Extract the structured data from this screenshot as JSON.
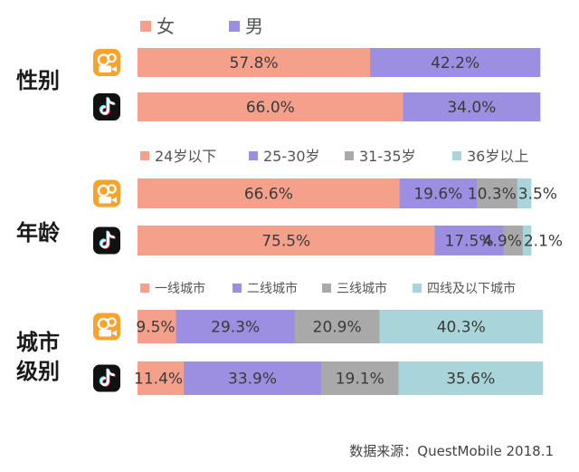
{
  "chart_data": [
    {
      "type": "bar",
      "orientation": "horizontal",
      "stacked": true,
      "title": "性别",
      "categories": [
        "快手",
        "抖音"
      ],
      "series": [
        {
          "name": "女",
          "values": [
            57.8,
            66.0
          ]
        },
        {
          "name": "男",
          "values": [
            42.2,
            34.0
          ]
        }
      ],
      "labels": [
        [
          "57.8%",
          "42.2%"
        ],
        [
          "66.0%",
          "34.0%"
        ]
      ]
    },
    {
      "type": "bar",
      "orientation": "horizontal",
      "stacked": true,
      "title": "年龄",
      "categories": [
        "快手",
        "抖音"
      ],
      "series": [
        {
          "name": "24岁以下",
          "values": [
            66.6,
            75.5
          ]
        },
        {
          "name": "25-30岁",
          "values": [
            19.6,
            17.5
          ]
        },
        {
          "name": "31-35岁",
          "values": [
            10.3,
            4.9
          ]
        },
        {
          "name": "36岁以上",
          "values": [
            3.5,
            2.1
          ]
        }
      ],
      "labels": [
        [
          "66.6%",
          "19.6%",
          "10.3%",
          "3.5%"
        ],
        [
          "75.5%",
          "17.5%",
          "4.9%",
          "2.1%"
        ]
      ]
    },
    {
      "type": "bar",
      "orientation": "horizontal",
      "stacked": true,
      "title": "城市级别",
      "title_lines": [
        "城市",
        "级别"
      ],
      "categories": [
        "快手",
        "抖音"
      ],
      "series": [
        {
          "name": "一线城市",
          "values": [
            9.5,
            11.4
          ]
        },
        {
          "name": "二线城市",
          "values": [
            29.3,
            33.9
          ]
        },
        {
          "name": "三线城市",
          "values": [
            20.9,
            19.1
          ]
        },
        {
          "name": "四线及以下城市",
          "values": [
            40.3,
            35.6
          ]
        }
      ],
      "labels": [
        [
          "9.5%",
          "29.3%",
          "20.9%",
          "40.3%"
        ],
        [
          "11.4%",
          "33.9%",
          "19.1%",
          "35.6%"
        ]
      ]
    }
  ],
  "colors": [
    "#f4a08b",
    "#9c8ee0",
    "#a9a9a9",
    "#a9d5da"
  ],
  "app_icons": [
    "kuaishou-icon",
    "douyin-icon"
  ],
  "source": "数据来源：QuestMobile 2018.1"
}
